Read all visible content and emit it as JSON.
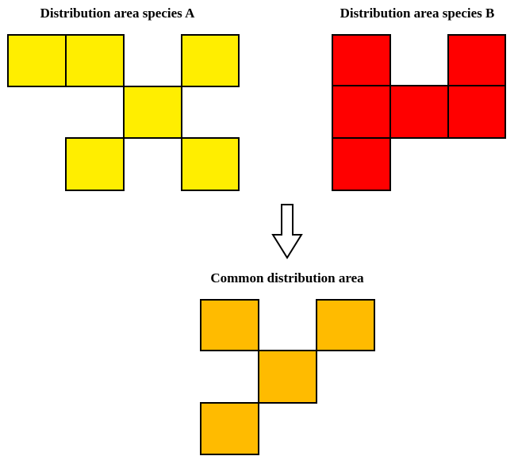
{
  "panels": [
    {
      "title": "Distribution area species A"
    },
    {
      "title": "Distribution area species B"
    },
    {
      "title": "Common distribution area"
    }
  ]
}
